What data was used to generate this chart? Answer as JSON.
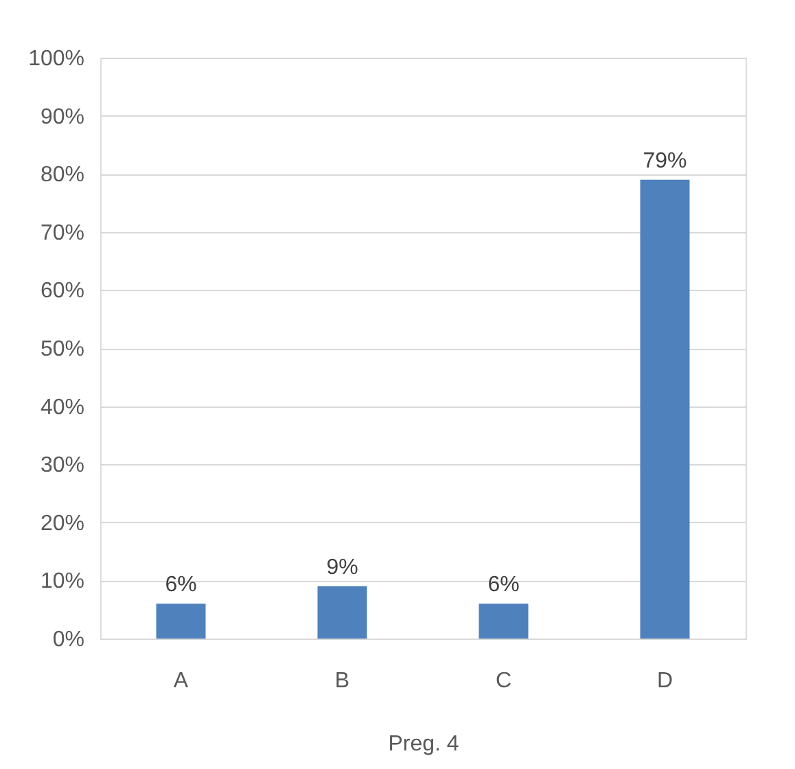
{
  "chart_data": {
    "type": "bar",
    "xlabel": "Preg. 4",
    "categories": [
      "A",
      "B",
      "C",
      "D"
    ],
    "values": [
      6,
      9,
      6,
      79
    ],
    "color": "#4f81bd",
    "value_labels": [
      "6%",
      "9%",
      "6%",
      "79%"
    ],
    "ylim": [
      0,
      100
    ],
    "yticks": [
      {
        "value": 0,
        "label": "0%"
      },
      {
        "value": 10,
        "label": "10%"
      },
      {
        "value": 20,
        "label": "20%"
      },
      {
        "value": 30,
        "label": "30%"
      },
      {
        "value": 40,
        "label": "40%"
      },
      {
        "value": 50,
        "label": "50%"
      },
      {
        "value": 60,
        "label": "60%"
      },
      {
        "value": 70,
        "label": "70%"
      },
      {
        "value": 80,
        "label": "80%"
      },
      {
        "value": 90,
        "label": "90%"
      },
      {
        "value": 100,
        "label": "100%"
      }
    ],
    "grid": "y"
  }
}
